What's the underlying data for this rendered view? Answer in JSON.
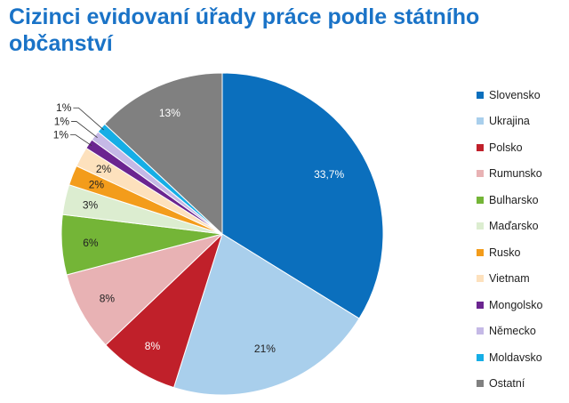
{
  "title": "Cizinci evidovaní úřady práce podle státního občanství",
  "chart_data": {
    "type": "pie",
    "legend_position": "right",
    "slices": [
      {
        "name": "Slovensko",
        "value": 33.7,
        "label": "33,7%",
        "color": "#0b6fbd"
      },
      {
        "name": "Ukrajina",
        "value": 21,
        "label": "21%",
        "color": "#a9cfec"
      },
      {
        "name": "Polsko",
        "value": 8,
        "label": "8%",
        "color": "#c0202a"
      },
      {
        "name": "Rumunsko",
        "value": 8,
        "label": "8%",
        "color": "#e8b2b4"
      },
      {
        "name": "Bulharsko",
        "value": 6,
        "label": "6%",
        "color": "#74b537"
      },
      {
        "name": "Maďarsko",
        "value": 3,
        "label": "3%",
        "color": "#dcedd0"
      },
      {
        "name": "Rusko",
        "value": 2,
        "label": "2%",
        "color": "#f39c1b"
      },
      {
        "name": "Vietnam",
        "value": 2,
        "label": "2%",
        "color": "#fde1bd"
      },
      {
        "name": "Mongolsko",
        "value": 1,
        "label": "1%",
        "color": "#6b2590"
      },
      {
        "name": "Německo",
        "value": 1,
        "label": "1%",
        "color": "#c5b9e6"
      },
      {
        "name": "Moldavsko",
        "value": 1,
        "label": "1%",
        "color": "#15aee6"
      },
      {
        "name": "Ostatní",
        "value": 13,
        "label": "13%",
        "color": "#808080"
      }
    ]
  }
}
